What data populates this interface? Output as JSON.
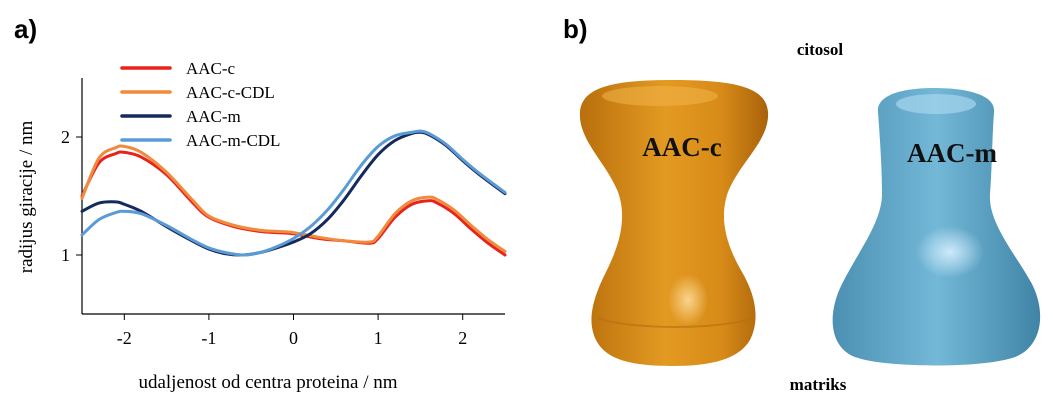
{
  "panel_a_label": "a)",
  "panel_b_label": "b)",
  "colors": {
    "AAC-c": "#e8231c",
    "AAC-c-CDL": "#f08a3c",
    "AAC-m": "#152a5c",
    "AAC-m-CDL": "#5b9bd5",
    "orange_shape": "#d98c1a",
    "blue_shape": "#5aa3c4"
  },
  "chart_data": {
    "type": "line",
    "title": "",
    "xlabel": "udaljenost od centra proteina / nm",
    "ylabel": "radijus giracije / nm",
    "xlim": [
      -2.5,
      2.5
    ],
    "ylim": [
      0.5,
      2.5
    ],
    "xticks": [
      "-2",
      "-1",
      "0",
      "1",
      "2"
    ],
    "xtick_values": [
      -2,
      -1,
      0,
      1,
      2
    ],
    "yticks": [
      "1",
      "2"
    ],
    "ytick_values": [
      1,
      2
    ],
    "legend_position": "top-left",
    "series": [
      {
        "name": "AAC-c",
        "x": [
          -2.5,
          -2.3,
          -2.1,
          -2.0,
          -1.8,
          -1.5,
          -1.2,
          -1.0,
          -0.7,
          -0.4,
          -0.2,
          0.0,
          0.3,
          0.6,
          0.9,
          1.0,
          1.2,
          1.4,
          1.6,
          1.7,
          1.9,
          2.1,
          2.3,
          2.5
        ],
        "y": [
          1.5,
          1.78,
          1.86,
          1.87,
          1.83,
          1.68,
          1.45,
          1.32,
          1.24,
          1.2,
          1.19,
          1.18,
          1.14,
          1.12,
          1.1,
          1.14,
          1.32,
          1.43,
          1.46,
          1.44,
          1.35,
          1.22,
          1.1,
          1.0
        ]
      },
      {
        "name": "AAC-c-CDL",
        "x": [
          -2.5,
          -2.3,
          -2.1,
          -2.0,
          -1.8,
          -1.5,
          -1.2,
          -1.0,
          -0.7,
          -0.4,
          -0.2,
          0.0,
          0.3,
          0.6,
          0.9,
          1.0,
          1.2,
          1.4,
          1.6,
          1.7,
          1.9,
          2.1,
          2.3,
          2.5
        ],
        "y": [
          1.48,
          1.82,
          1.91,
          1.92,
          1.87,
          1.7,
          1.47,
          1.33,
          1.25,
          1.21,
          1.2,
          1.19,
          1.15,
          1.12,
          1.11,
          1.16,
          1.35,
          1.46,
          1.49,
          1.47,
          1.38,
          1.25,
          1.13,
          1.03
        ]
      },
      {
        "name": "AAC-m",
        "x": [
          -2.5,
          -2.3,
          -2.1,
          -2.0,
          -1.8,
          -1.5,
          -1.2,
          -1.0,
          -0.8,
          -0.6,
          -0.4,
          -0.2,
          0.0,
          0.2,
          0.4,
          0.6,
          0.8,
          1.0,
          1.2,
          1.4,
          1.5,
          1.6,
          1.8,
          2.0,
          2.2,
          2.5
        ],
        "y": [
          1.37,
          1.44,
          1.45,
          1.43,
          1.37,
          1.24,
          1.12,
          1.05,
          1.01,
          1.0,
          1.02,
          1.06,
          1.11,
          1.18,
          1.3,
          1.47,
          1.67,
          1.85,
          1.97,
          2.03,
          2.04,
          2.02,
          1.93,
          1.8,
          1.68,
          1.52
        ]
      },
      {
        "name": "AAC-m-CDL",
        "x": [
          -2.5,
          -2.3,
          -2.1,
          -2.0,
          -1.8,
          -1.5,
          -1.2,
          -1.0,
          -0.8,
          -0.6,
          -0.4,
          -0.2,
          0.0,
          0.2,
          0.4,
          0.6,
          0.8,
          1.0,
          1.2,
          1.4,
          1.5,
          1.6,
          1.8,
          2.0,
          2.2,
          2.5
        ],
        "y": [
          1.17,
          1.3,
          1.36,
          1.37,
          1.35,
          1.25,
          1.13,
          1.06,
          1.02,
          1.0,
          1.02,
          1.07,
          1.14,
          1.24,
          1.38,
          1.56,
          1.76,
          1.92,
          2.01,
          2.04,
          2.05,
          2.03,
          1.94,
          1.81,
          1.69,
          1.53
        ]
      }
    ]
  },
  "diagram": {
    "top_label": "citosol",
    "bottom_label": "matriks",
    "shape_left_label": "AAC-c",
    "shape_right_label": "AAC-m"
  }
}
